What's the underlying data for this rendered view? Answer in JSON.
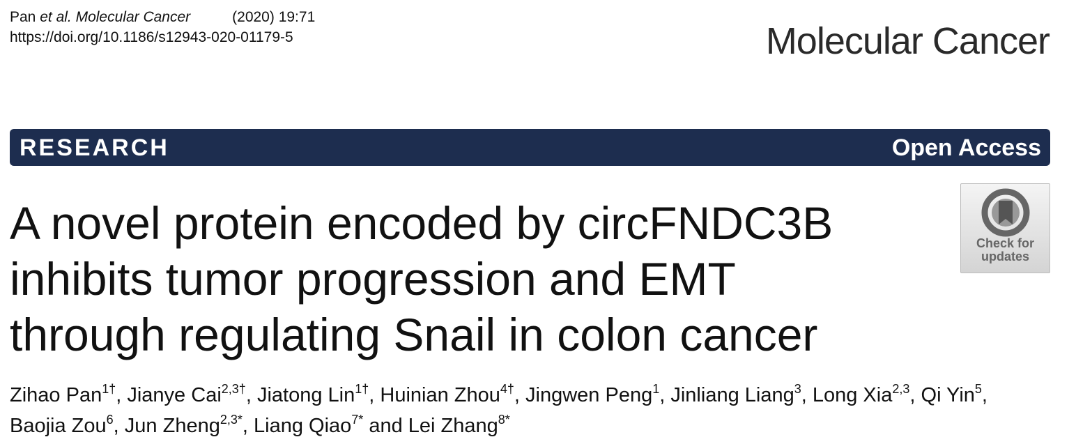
{
  "header": {
    "author_short": "Pan",
    "journal_italic": "et al. Molecular Cancer",
    "volume": "(2020) 19:71",
    "doi": "https://doi.org/10.1186/s12943-020-01179-5",
    "journal": "Molecular Cancer"
  },
  "banner": {
    "type": "RESEARCH",
    "access": "Open Access"
  },
  "title": {
    "lines": [
      "A novel protein encoded by circFNDC3B",
      "inhibits tumor progression and EMT",
      "through regulating Snail in colon cancer"
    ]
  },
  "badge": {
    "lines": [
      "Check for",
      "updates"
    ]
  },
  "authors": [
    {
      "name": "Zihao Pan",
      "sup": "1†",
      "sep": ", "
    },
    {
      "name": "Jianye Cai",
      "sup": "2,3†",
      "sep": ", "
    },
    {
      "name": "Jiatong Lin",
      "sup": "1†",
      "sep": ", "
    },
    {
      "name": "Huinian Zhou",
      "sup": "4†",
      "sep": ", "
    },
    {
      "name": "Jingwen Peng",
      "sup": "1",
      "sep": ", "
    },
    {
      "name": "Jinliang Liang",
      "sup": "3",
      "sep": ", "
    },
    {
      "name": "Long Xia",
      "sup": "2,3",
      "sep": ", "
    },
    {
      "name": "Qi Yin",
      "sup": "5",
      "sep": ", "
    },
    {
      "name": "Baojia Zou",
      "sup": "6",
      "sep": ", "
    },
    {
      "name": "Jun Zheng",
      "sup": "2,3*",
      "sep": ", "
    },
    {
      "name": "Liang Qiao",
      "sup": "7*",
      "sep": " and "
    },
    {
      "name": "Lei Zhang",
      "sup": "8*"
    }
  ]
}
